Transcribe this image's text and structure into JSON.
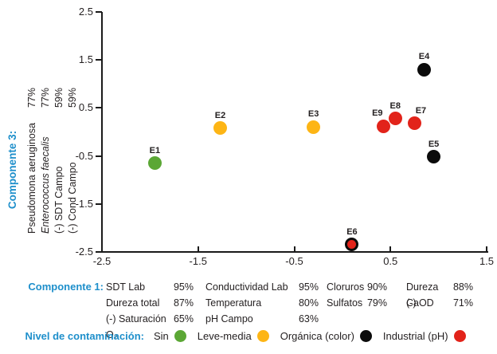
{
  "colors": {
    "accent_blue": "#1E8FCB",
    "text": "#231F20",
    "green": "#5BA735",
    "yellow": "#FDB515",
    "black": "#0B0B0B",
    "red": "#E2231A"
  },
  "chart_data": {
    "type": "scatter",
    "title": "",
    "xlim": [
      -2.5,
      1.5
    ],
    "ylim": [
      -2.5,
      2.5
    ],
    "grid": false,
    "x_ticks": [
      -2.5,
      -1.5,
      -0.5,
      0.5,
      1.5
    ],
    "x_tick_labels": [
      "-2.5",
      "-1.5",
      "-0.5",
      "0.5",
      "1.5"
    ],
    "y_ticks": [
      2.5,
      1.5,
      0.5,
      -0.5,
      -1.5,
      -2.5
    ],
    "y_tick_labels": [
      "2.5",
      "1.5",
      "0.5",
      "-0.5",
      "-1.5",
      "-2.5"
    ],
    "points": [
      {
        "id": "E1",
        "x": -1.95,
        "y": -0.65,
        "fill": "#5BA735",
        "ring": false,
        "level": "Sin",
        "label_dx": 0
      },
      {
        "id": "E2",
        "x": -1.27,
        "y": 0.08,
        "fill": "#FDB515",
        "ring": false,
        "level": "Leve-media",
        "label_dx": 0
      },
      {
        "id": "E3",
        "x": -0.3,
        "y": 0.1,
        "fill": "#FDB515",
        "ring": false,
        "level": "Leve-media",
        "label_dx": 0
      },
      {
        "id": "E4",
        "x": 0.85,
        "y": 1.3,
        "fill": "#0B0B0B",
        "ring": false,
        "level": "Orgánica (color)",
        "label_dx": 0
      },
      {
        "id": "E5",
        "x": 0.95,
        "y": -0.52,
        "fill": "#0B0B0B",
        "ring": false,
        "level": "Orgánica (color)",
        "label_dx": 0
      },
      {
        "id": "E6",
        "x": 0.1,
        "y": -2.35,
        "fill": "#E2231A",
        "ring": true,
        "level": "Orgánica (color) + Industrial (pH)",
        "label_dx": 0
      },
      {
        "id": "E7",
        "x": 0.75,
        "y": 0.18,
        "fill": "#E2231A",
        "ring": false,
        "level": "Industrial (pH)",
        "label_dx": 8
      },
      {
        "id": "E8",
        "x": 0.55,
        "y": 0.28,
        "fill": "#E2231A",
        "ring": false,
        "level": "Industrial (pH)",
        "label_dx": 0
      },
      {
        "id": "E9",
        "x": 0.43,
        "y": 0.12,
        "fill": "#E2231A",
        "ring": false,
        "level": "Industrial (pH)",
        "label_dx": -8
      }
    ]
  },
  "y_axis_block": {
    "title": "Componente 3:",
    "loadings": [
      {
        "name": "Pseudomona aeruginosa",
        "value": "77%",
        "italic": false
      },
      {
        "name": "Enterococcus faecalis",
        "value": "77%",
        "italic": true
      },
      {
        "name": "(-) SDT Campo",
        "value": "59%",
        "italic": false
      },
      {
        "name": "(-) Cond Campo",
        "value": "59%",
        "italic": false
      }
    ]
  },
  "x_axis_block": {
    "title": "Componente 1:",
    "columns": [
      [
        {
          "name": "SDT Lab",
          "value": "95%"
        },
        {
          "name": "Dureza total",
          "value": "87%"
        },
        {
          "name": "(-) Saturación O₂",
          "value": "65%"
        }
      ],
      [
        {
          "name": "Conductividad Lab",
          "value": "95%"
        },
        {
          "name": "Temperatura",
          "value": "80%"
        },
        {
          "name": "pH Campo",
          "value": "63%"
        }
      ],
      [
        {
          "name": "Cloruros",
          "value": "90%"
        },
        {
          "name": "Sulfatos",
          "value": "79%"
        }
      ],
      [
        {
          "name": "Dureza Ca",
          "value": "88%"
        },
        {
          "name": "(-) OD",
          "value": "71%"
        }
      ]
    ]
  },
  "legend": {
    "title": "Nivel de contaminación:",
    "items": [
      {
        "label": "Sin",
        "color": "#5BA735"
      },
      {
        "label": "Leve-media",
        "color": "#FDB515"
      },
      {
        "label": "Orgánica (color)",
        "color": "#0B0B0B"
      },
      {
        "label": "Industrial (pH)",
        "color": "#E2231A"
      }
    ]
  }
}
